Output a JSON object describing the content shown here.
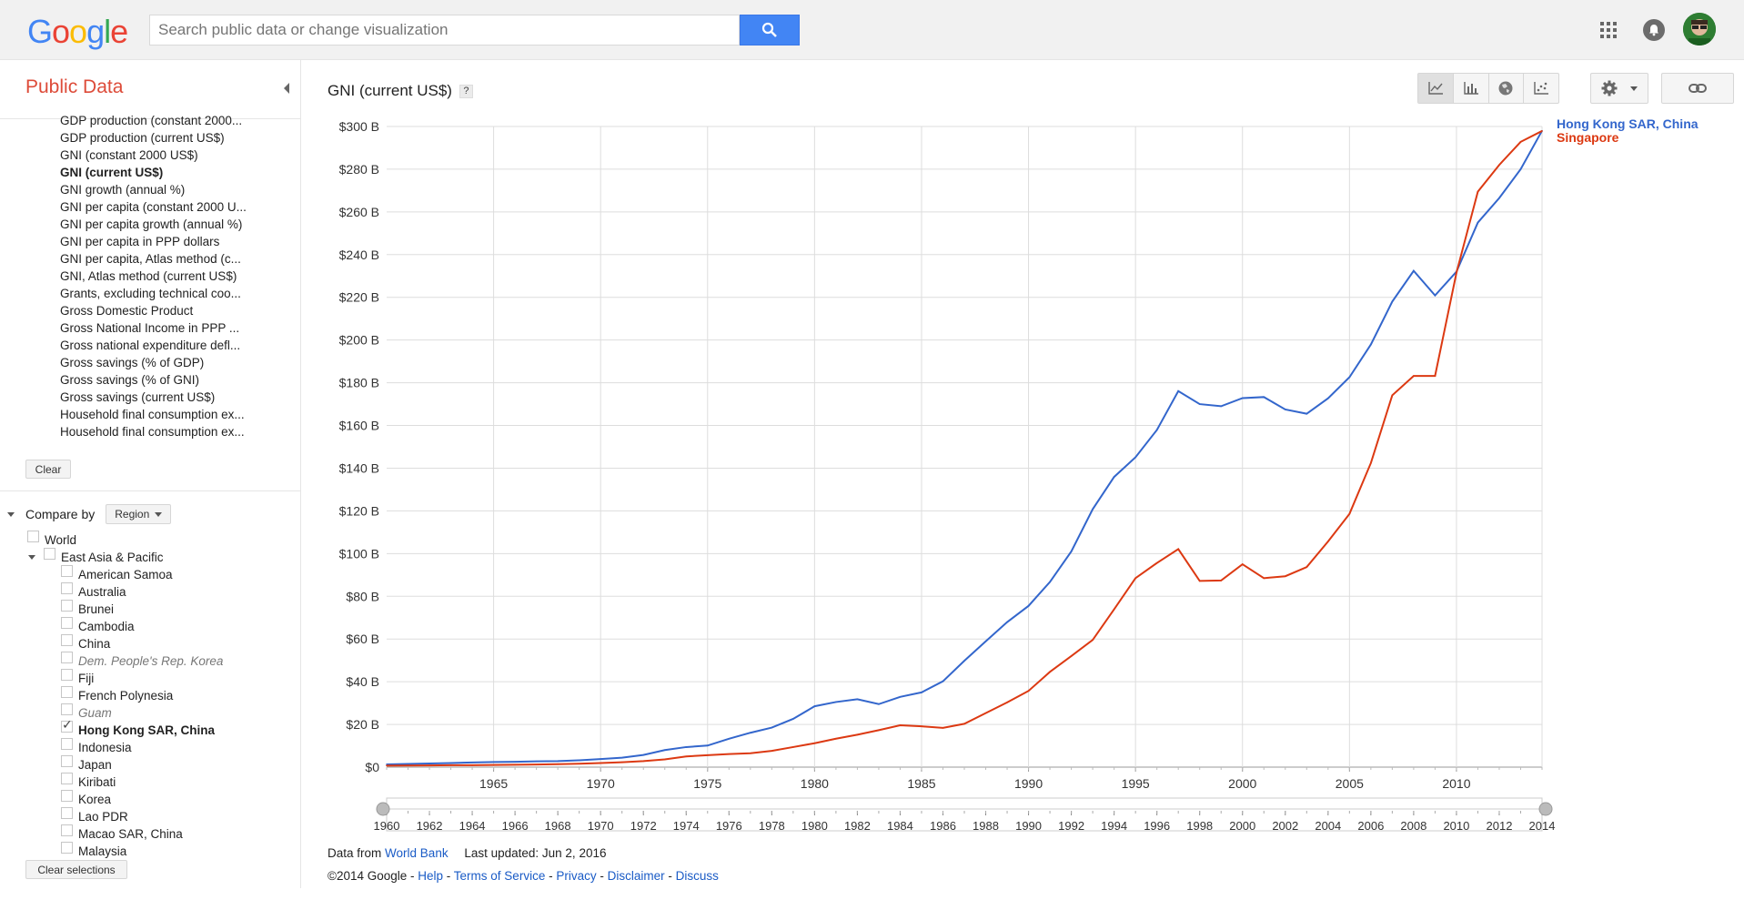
{
  "header": {
    "logo": [
      "G",
      "o",
      "o",
      "g",
      "l",
      "e"
    ],
    "logo_colors": [
      "#4285f4",
      "#ea4335",
      "#fbbc05",
      "#4285f4",
      "#34a853",
      "#ea4335"
    ],
    "search_placeholder": "Search public data or change visualization",
    "icons": [
      "search-icon",
      "apps-icon",
      "notifications-icon",
      "avatar"
    ]
  },
  "sidebar": {
    "title": "Public Data",
    "metrics": [
      "GDP production (constant 2000...",
      "GDP production (current US$)",
      "GNI (constant 2000 US$)",
      "GNI (current US$)",
      "GNI growth (annual %)",
      "GNI per capita (constant 2000 U...",
      "GNI per capita growth (annual %)",
      "GNI per capita in PPP dollars",
      "GNI per capita, Atlas method (c...",
      "GNI, Atlas method (current US$)",
      "Grants, excluding technical coo...",
      "Gross Domestic Product",
      "Gross National Income in PPP ...",
      "Gross national expenditure defl...",
      "Gross savings (% of GDP)",
      "Gross savings (% of GNI)",
      "Gross savings (current US$)",
      "Household final consumption ex...",
      "Household final consumption ex..."
    ],
    "active_metric": "GNI (current US$)",
    "clear_label": "Clear",
    "compare_by_label": "Compare by",
    "region_label": "Region",
    "regions": [
      {
        "label": "World",
        "level": 0,
        "checked": false,
        "style": "normal"
      },
      {
        "label": "East Asia & Pacific",
        "level": 0,
        "checked": false,
        "style": "normal",
        "expanded": true
      },
      {
        "label": "American Samoa",
        "level": 1,
        "checked": false,
        "style": "normal"
      },
      {
        "label": "Australia",
        "level": 1,
        "checked": false,
        "style": "normal"
      },
      {
        "label": "Brunei",
        "level": 1,
        "checked": false,
        "style": "normal"
      },
      {
        "label": "Cambodia",
        "level": 1,
        "checked": false,
        "style": "normal"
      },
      {
        "label": "China",
        "level": 1,
        "checked": false,
        "style": "normal"
      },
      {
        "label": "Dem. People's Rep. Korea",
        "level": 1,
        "checked": false,
        "style": "italic"
      },
      {
        "label": "Fiji",
        "level": 1,
        "checked": false,
        "style": "normal"
      },
      {
        "label": "French Polynesia",
        "level": 1,
        "checked": false,
        "style": "normal"
      },
      {
        "label": "Guam",
        "level": 1,
        "checked": false,
        "style": "italic"
      },
      {
        "label": "Hong Kong SAR, China",
        "level": 1,
        "checked": true,
        "style": "bold"
      },
      {
        "label": "Indonesia",
        "level": 1,
        "checked": false,
        "style": "normal"
      },
      {
        "label": "Japan",
        "level": 1,
        "checked": false,
        "style": "normal"
      },
      {
        "label": "Kiribati",
        "level": 1,
        "checked": false,
        "style": "normal"
      },
      {
        "label": "Korea",
        "level": 1,
        "checked": false,
        "style": "normal"
      },
      {
        "label": "Lao PDR",
        "level": 1,
        "checked": false,
        "style": "normal"
      },
      {
        "label": "Macao SAR, China",
        "level": 1,
        "checked": false,
        "style": "normal"
      },
      {
        "label": "Malaysia",
        "level": 1,
        "checked": false,
        "style": "normal"
      }
    ],
    "clear_selections_label": "Clear selections"
  },
  "main": {
    "title": "GNI (current US$)",
    "help_label": "?",
    "vis_buttons": [
      "line-chart-icon",
      "bar-chart-icon",
      "map-icon",
      "scatter-icon"
    ],
    "footer": {
      "data_from": "Data from",
      "source": "World Bank",
      "last_updated": "Last updated: Jun 2, 2016",
      "copyright": "©2014 Google - ",
      "links": [
        "Help",
        "Terms of Service",
        "Privacy",
        "Disclaimer",
        "Discuss"
      ],
      "sep": " - "
    }
  },
  "chart_data": {
    "type": "line",
    "title": "GNI (current US$)",
    "xlabel": "",
    "ylabel": "",
    "x": [
      1960,
      1961,
      1962,
      1963,
      1964,
      1965,
      1966,
      1967,
      1968,
      1969,
      1970,
      1971,
      1972,
      1973,
      1974,
      1975,
      1976,
      1977,
      1978,
      1979,
      1980,
      1981,
      1982,
      1983,
      1984,
      1985,
      1986,
      1987,
      1988,
      1989,
      1990,
      1991,
      1992,
      1993,
      1994,
      1995,
      1996,
      1997,
      1998,
      1999,
      2000,
      2001,
      2002,
      2003,
      2004,
      2005,
      2006,
      2007,
      2008,
      2009,
      2010,
      2011,
      2012,
      2013,
      2014
    ],
    "series": [
      {
        "name": "Hong Kong SAR, China",
        "color": "#3366cc",
        "values": [
          1.3,
          1.5,
          1.7,
          1.9,
          2.2,
          2.4,
          2.5,
          2.7,
          2.8,
          3.2,
          3.8,
          4.4,
          5.7,
          8.0,
          9.4,
          10.1,
          13.3,
          16.1,
          18.5,
          22.6,
          28.5,
          30.5,
          31.8,
          29.5,
          32.9,
          35.0,
          40.2,
          49.8,
          58.9,
          67.9,
          75.5,
          86.7,
          101.0,
          120.8,
          135.9,
          145.1,
          157.9,
          176.1,
          170.0,
          169.0,
          172.8,
          173.3,
          167.5,
          165.5,
          172.7,
          182.6,
          197.9,
          218.0,
          232.4,
          220.9,
          232.0,
          255.0,
          266.5,
          280.0,
          298.0
        ]
      },
      {
        "name": "Singapore",
        "color": "#dc3912",
        "values": [
          0.7,
          0.75,
          0.8,
          0.9,
          0.9,
          1.0,
          1.1,
          1.2,
          1.4,
          1.6,
          1.9,
          2.3,
          2.8,
          3.6,
          5.0,
          5.6,
          6.1,
          6.5,
          7.6,
          9.4,
          11.2,
          13.3,
          15.2,
          17.3,
          19.6,
          19.1,
          18.4,
          20.3,
          25.3,
          30.3,
          35.7,
          44.6,
          52.0,
          59.6,
          73.9,
          88.5,
          95.6,
          102.1,
          87.2,
          87.4,
          95.0,
          88.5,
          89.4,
          93.7,
          105.7,
          118.6,
          142.4,
          174.1,
          183.2,
          183.2,
          231.5,
          269.5,
          282.0,
          292.8,
          297.9
        ]
      }
    ],
    "yticks": [
      "$0",
      "$20 B",
      "$40 B",
      "$60 B",
      "$80 B",
      "$100 B",
      "$120 B",
      "$140 B",
      "$160 B",
      "$180 B",
      "$200 B",
      "$220 B",
      "$240 B",
      "$260 B",
      "$280 B",
      "$300 B"
    ],
    "xticks": [
      1965,
      1970,
      1975,
      1980,
      1985,
      1990,
      1995,
      2000,
      2005,
      2010
    ],
    "slider_ticks": [
      1960,
      1962,
      1964,
      1966,
      1968,
      1970,
      1972,
      1974,
      1976,
      1978,
      1980,
      1982,
      1984,
      1986,
      1988,
      1990,
      1992,
      1994,
      1996,
      1998,
      2000,
      2002,
      2004,
      2006,
      2008,
      2010,
      2012,
      2014
    ],
    "ylim": [
      0,
      300
    ],
    "xlim": [
      1960,
      2014
    ],
    "grid": true,
    "legend": "right"
  }
}
